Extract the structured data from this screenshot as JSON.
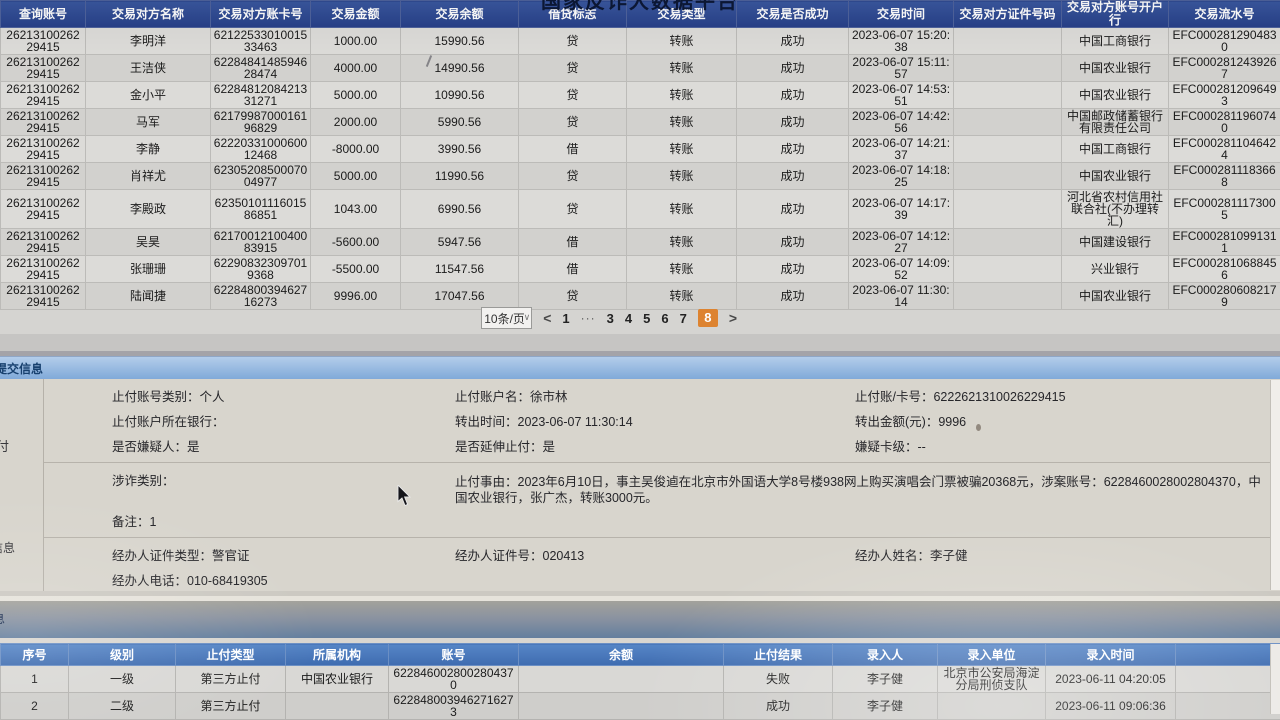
{
  "platform_title": "国家反诈大数据平台",
  "transactions": {
    "columns": [
      "查询账号",
      "交易对方名称",
      "交易对方账卡号",
      "交易金额",
      "交易余额",
      "借贷标志",
      "交易类型",
      "交易是否成功",
      "交易时间",
      "交易对方证件号码",
      "交易对方账号开户行",
      "交易流水号"
    ],
    "rows": [
      [
        "2621310026229415",
        "李明洋",
        "6212253301001533463",
        "1000.00",
        "15990.56",
        "贷",
        "转账",
        "成功",
        "2023-06-07 15:20:38",
        "",
        "中国工商银行",
        "EFC0002812904830"
      ],
      [
        "2621310026229415",
        "王洁侠",
        "6228484148594628474",
        "4000.00",
        "14990.56",
        "贷",
        "转账",
        "成功",
        "2023-06-07 15:11:57",
        "",
        "中国农业银行",
        "EFC0002812439267"
      ],
      [
        "2621310026229415",
        "金小平",
        "6228481208421331271",
        "5000.00",
        "10990.56",
        "贷",
        "转账",
        "成功",
        "2023-06-07 14:53:51",
        "",
        "中国农业银行",
        "EFC0002812096493"
      ],
      [
        "2621310026229415",
        "马军",
        "6217998700016196829",
        "2000.00",
        "5990.56",
        "贷",
        "转账",
        "成功",
        "2023-06-07 14:42:56",
        "",
        "中国邮政储蓄银行有限责任公司",
        "EFC0002811960740"
      ],
      [
        "2621310026229415",
        "李静",
        "6222033100060012468",
        "-8000.00",
        "3990.56",
        "借",
        "转账",
        "成功",
        "2023-06-07 14:21:37",
        "",
        "中国工商银行",
        "EFC0002811046424"
      ],
      [
        "2621310026229415",
        "肖祥尤",
        "6230520850007004977",
        "5000.00",
        "11990.56",
        "贷",
        "转账",
        "成功",
        "2023-06-07 14:18:25",
        "",
        "中国农业银行",
        "EFC0002811183668"
      ],
      [
        "2621310026229415",
        "李殿政",
        "6235010111601586851",
        "1043.00",
        "6990.56",
        "贷",
        "转账",
        "成功",
        "2023-06-07 14:17:39",
        "",
        "河北省农村信用社联合社(不办理转汇)",
        "EFC0002811173005"
      ],
      [
        "2621310026229415",
        "吴昊",
        "6217001210040083915",
        "-5600.00",
        "5947.56",
        "借",
        "转账",
        "成功",
        "2023-06-07 14:12:27",
        "",
        "中国建设银行",
        "EFC0002810991311"
      ],
      [
        "2621310026229415",
        "张珊珊",
        "622908323097019368",
        "-5500.00",
        "11547.56",
        "借",
        "转账",
        "成功",
        "2023-06-07 14:09:52",
        "",
        "兴业银行",
        "EFC0002810688456"
      ],
      [
        "2621310026229415",
        "陆闻捷",
        "6228480039462716273",
        "9996.00",
        "17047.56",
        "贷",
        "转账",
        "成功",
        "2023-06-07 11:30:14",
        "",
        "中国农业银行",
        "EFC0002806082179"
      ]
    ]
  },
  "pagination": {
    "page_size": "10条/页",
    "chevron_icon": "∨",
    "prev": "<",
    "next": ">",
    "pages": [
      "1",
      "···",
      "3",
      "4",
      "5",
      "6",
      "7",
      "8"
    ],
    "active_page": "8"
  },
  "submit_info": {
    "title": "提交信息",
    "sections": [
      {
        "rows": [
          [
            {
              "label": "止付账号类别",
              "value": "个人"
            },
            {
              "label": "止付账户名",
              "value": "徐市林"
            },
            {
              "label": "止付账/卡号",
              "value": "6222621310026229415"
            }
          ],
          [
            {
              "label": "止付账户所在银行",
              "value": ""
            },
            {
              "label": "转出时间",
              "value": "2023-06-07 11:30:14"
            },
            {
              "label": "转出金额(元)",
              "value": "9996"
            }
          ],
          [
            {
              "label": "是否嫌疑人",
              "value": "是"
            },
            {
              "label": "是否延伸止付",
              "value": "是"
            },
            {
              "label": "嫌疑卡级",
              "value": "--"
            }
          ]
        ]
      },
      {
        "rows": [
          [
            {
              "label": "涉诈类别",
              "value": ""
            },
            {
              "label": "止付事由",
              "value": "2023年6月10日，事主吴俊逌在北京市外国语大学8号楼938网上购买演唱会门票被骗20368元，涉案账号：6228460028002804370，中国农业银行，张广杰，转账3000元。"
            }
          ],
          [
            {
              "label": "备注",
              "value": "1"
            }
          ]
        ]
      },
      {
        "rows": [
          [
            {
              "label": "经办人证件类型",
              "value": "警官证"
            },
            {
              "label": "经办人证件号",
              "value": "020413"
            },
            {
              "label": "经办人姓名",
              "value": "李子健"
            }
          ],
          [
            {
              "label": "经办人电话",
              "value": "010-68419305"
            }
          ]
        ]
      }
    ]
  },
  "side_labels": {
    "fragment_top": "付",
    "fragment_middle": "信息",
    "fragment_bottom": "息"
  },
  "stop_payment_records": {
    "columns": [
      "序号",
      "级别",
      "止付类型",
      "所属机构",
      "账号",
      "余额",
      "止付结果",
      "录入人",
      "录入单位",
      "录入时间",
      ""
    ],
    "rows": [
      [
        "1",
        "一级",
        "第三方止付",
        "中国农业银行",
        "6228460028002804370",
        "",
        "失败",
        "李子健",
        "北京市公安局海淀分局刑侦支队",
        "2023-06-11 04:20:05",
        ""
      ],
      [
        "2",
        "二级",
        "第三方止付",
        "",
        "6228480039462716273",
        "",
        "成功",
        "李子健",
        "",
        "2023-06-11 09:06:36",
        ""
      ]
    ]
  },
  "colors": {
    "table_header_navy": "#2c4a93",
    "section_bar_blue": "#7ea8d8",
    "active_page_orange": "#dd8330"
  }
}
